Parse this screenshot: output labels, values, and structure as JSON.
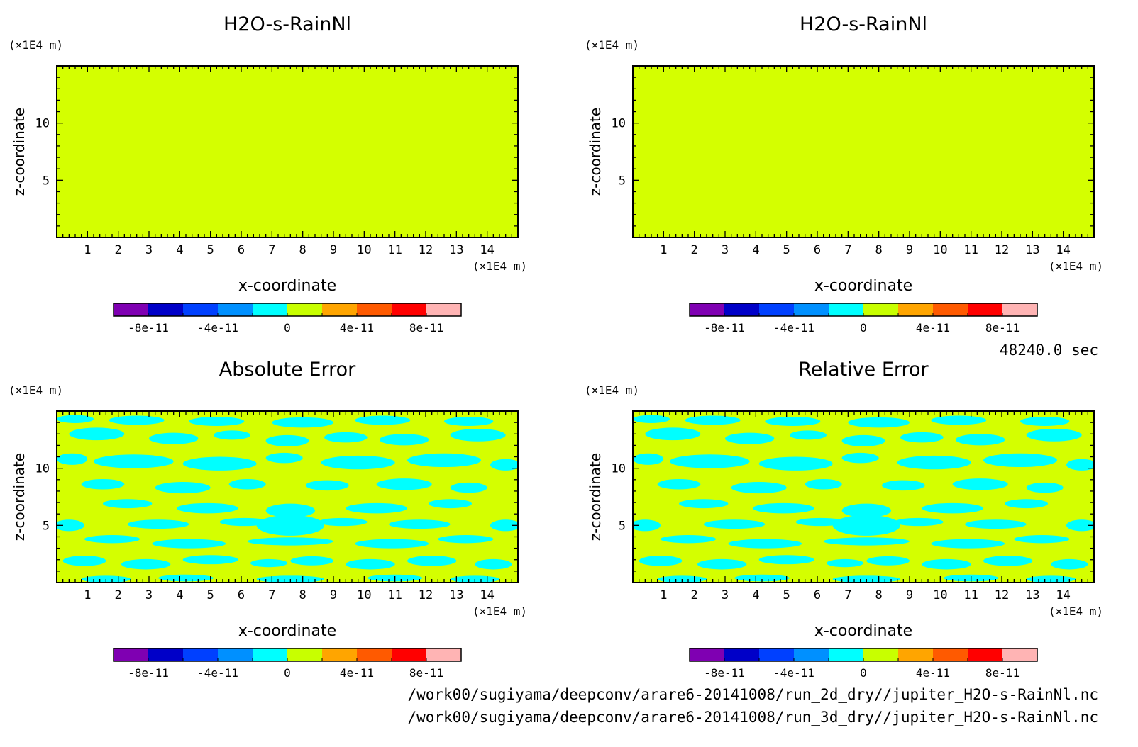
{
  "time_label": "48240.0 sec",
  "files": [
    "/work00/sugiyama/deepconv/arare6-20141008/run_2d_dry//jupiter_H2O-s-RainNl.nc",
    "/work00/sugiyama/deepconv/arare6-20141008/run_3d_dry//jupiter_H2O-s-RainNl.nc"
  ],
  "colors": {
    "background": "#ffffff",
    "field_fill": "#d4ff00",
    "error_patch": "#00ffff",
    "colorbar": [
      "#7f00b2",
      "#0000c8",
      "#0040ff",
      "#0090ff",
      "#00ffff",
      "#c8ff00",
      "#ffa500",
      "#ff5a00",
      "#ff0000",
      "#ffb4b4"
    ]
  },
  "colorbar_ticks": [
    "-8e-11",
    "-4e-11",
    "0",
    "4e-11",
    "8e-11"
  ],
  "chart_data": [
    {
      "type": "heatmap",
      "panel": "top-left",
      "title": "H2O-s-RainNl",
      "xlabel": "x-coordinate",
      "ylabel": "z-coordinate",
      "x_unit": "(×1E4 m)",
      "y_unit": "(×1E4 m)",
      "xlim": [
        0,
        15
      ],
      "ylim": [
        0,
        15
      ],
      "x_ticks": [
        "1",
        "2",
        "3",
        "4",
        "5",
        "6",
        "7",
        "8",
        "9",
        "10",
        "11",
        "12",
        "13",
        "14"
      ],
      "y_ticks": [
        "5",
        "10"
      ],
      "field": "uniform",
      "value": 0
    },
    {
      "type": "heatmap",
      "panel": "top-right",
      "title": "H2O-s-RainNl",
      "xlabel": "x-coordinate",
      "ylabel": "z-coordinate",
      "x_unit": "(×1E4 m)",
      "y_unit": "(×1E4 m)",
      "xlim": [
        0,
        15
      ],
      "ylim": [
        0,
        15
      ],
      "x_ticks": [
        "1",
        "2",
        "3",
        "4",
        "5",
        "6",
        "7",
        "8",
        "9",
        "10",
        "11",
        "12",
        "13",
        "14"
      ],
      "y_ticks": [
        "5",
        "10"
      ],
      "field": "uniform",
      "value": 0
    },
    {
      "type": "heatmap",
      "panel": "bottom-left",
      "title": "Absolute Error",
      "xlabel": "x-coordinate",
      "ylabel": "z-coordinate",
      "x_unit": "(×1E4 m)",
      "y_unit": "(×1E4 m)",
      "xlim": [
        0,
        15
      ],
      "ylim": [
        0,
        15
      ],
      "x_ticks": [
        "1",
        "2",
        "3",
        "4",
        "5",
        "6",
        "7",
        "8",
        "9",
        "10",
        "11",
        "12",
        "13",
        "14"
      ],
      "y_ticks": [
        "5",
        "10"
      ],
      "field": "mixed",
      "blobs": [
        [
          0.6,
          14.3,
          0.6,
          0.35
        ],
        [
          2.6,
          14.2,
          0.9,
          0.4
        ],
        [
          5.2,
          14.1,
          0.9,
          0.4
        ],
        [
          8.0,
          14.0,
          1.0,
          0.45
        ],
        [
          10.6,
          14.2,
          0.9,
          0.4
        ],
        [
          13.4,
          14.1,
          0.8,
          0.4
        ],
        [
          1.3,
          13.0,
          0.9,
          0.55
        ],
        [
          3.8,
          12.6,
          0.8,
          0.5
        ],
        [
          5.7,
          12.9,
          0.6,
          0.4
        ],
        [
          7.5,
          12.4,
          0.7,
          0.5
        ],
        [
          9.4,
          12.7,
          0.7,
          0.45
        ],
        [
          11.3,
          12.5,
          0.8,
          0.5
        ],
        [
          13.7,
          12.9,
          0.9,
          0.55
        ],
        [
          0.5,
          10.8,
          0.5,
          0.5
        ],
        [
          2.5,
          10.6,
          1.3,
          0.6
        ],
        [
          5.3,
          10.4,
          1.2,
          0.6
        ],
        [
          7.4,
          10.9,
          0.6,
          0.45
        ],
        [
          9.8,
          10.5,
          1.2,
          0.6
        ],
        [
          12.6,
          10.7,
          1.2,
          0.6
        ],
        [
          14.6,
          10.3,
          0.5,
          0.5
        ],
        [
          1.5,
          8.6,
          0.7,
          0.45
        ],
        [
          4.1,
          8.3,
          0.9,
          0.5
        ],
        [
          6.2,
          8.6,
          0.6,
          0.45
        ],
        [
          8.8,
          8.5,
          0.7,
          0.45
        ],
        [
          11.3,
          8.6,
          0.9,
          0.5
        ],
        [
          13.4,
          8.3,
          0.6,
          0.45
        ],
        [
          2.3,
          6.9,
          0.8,
          0.4
        ],
        [
          4.9,
          6.5,
          1.0,
          0.45
        ],
        [
          7.6,
          6.3,
          0.8,
          0.6
        ],
        [
          10.4,
          6.5,
          1.0,
          0.45
        ],
        [
          12.8,
          6.9,
          0.7,
          0.4
        ],
        [
          0.4,
          5.0,
          0.5,
          0.5
        ],
        [
          3.3,
          5.1,
          1.0,
          0.4
        ],
        [
          6.1,
          5.3,
          0.8,
          0.35
        ],
        [
          7.6,
          5.0,
          1.1,
          0.9
        ],
        [
          9.3,
          5.3,
          0.8,
          0.35
        ],
        [
          11.8,
          5.1,
          1.0,
          0.4
        ],
        [
          14.6,
          5.0,
          0.5,
          0.5
        ],
        [
          1.8,
          3.8,
          0.9,
          0.35
        ],
        [
          4.3,
          3.4,
          1.2,
          0.4
        ],
        [
          7.6,
          3.6,
          1.4,
          0.35
        ],
        [
          10.9,
          3.4,
          1.2,
          0.4
        ],
        [
          13.3,
          3.8,
          0.9,
          0.35
        ],
        [
          0.9,
          1.9,
          0.7,
          0.45
        ],
        [
          2.9,
          1.6,
          0.8,
          0.45
        ],
        [
          5.0,
          2.0,
          0.9,
          0.4
        ],
        [
          6.9,
          1.7,
          0.6,
          0.35
        ],
        [
          8.3,
          1.9,
          0.7,
          0.4
        ],
        [
          10.2,
          1.6,
          0.8,
          0.45
        ],
        [
          12.2,
          1.9,
          0.8,
          0.45
        ],
        [
          14.2,
          1.6,
          0.6,
          0.45
        ],
        [
          1.6,
          0.3,
          0.8,
          0.3
        ],
        [
          4.2,
          0.4,
          0.9,
          0.3
        ],
        [
          7.6,
          0.3,
          1.1,
          0.3
        ],
        [
          11.0,
          0.4,
          0.9,
          0.3
        ],
        [
          13.6,
          0.3,
          0.8,
          0.3
        ]
      ]
    },
    {
      "type": "heatmap",
      "panel": "bottom-right",
      "title": "Relative Error",
      "xlabel": "x-coordinate",
      "ylabel": "z-coordinate",
      "x_unit": "(×1E4 m)",
      "y_unit": "(×1E4 m)",
      "xlim": [
        0,
        15
      ],
      "ylim": [
        0,
        15
      ],
      "x_ticks": [
        "1",
        "2",
        "3",
        "4",
        "5",
        "6",
        "7",
        "8",
        "9",
        "10",
        "11",
        "12",
        "13",
        "14"
      ],
      "y_ticks": [
        "5",
        "10"
      ],
      "field": "mixed",
      "blobs": [
        [
          0.6,
          14.3,
          0.6,
          0.35
        ],
        [
          2.6,
          14.2,
          0.9,
          0.4
        ],
        [
          5.2,
          14.1,
          0.9,
          0.4
        ],
        [
          8.0,
          14.0,
          1.0,
          0.45
        ],
        [
          10.6,
          14.2,
          0.9,
          0.4
        ],
        [
          13.4,
          14.1,
          0.8,
          0.4
        ],
        [
          1.3,
          13.0,
          0.9,
          0.55
        ],
        [
          3.8,
          12.6,
          0.8,
          0.5
        ],
        [
          5.7,
          12.9,
          0.6,
          0.4
        ],
        [
          7.5,
          12.4,
          0.7,
          0.5
        ],
        [
          9.4,
          12.7,
          0.7,
          0.45
        ],
        [
          11.3,
          12.5,
          0.8,
          0.5
        ],
        [
          13.7,
          12.9,
          0.9,
          0.55
        ],
        [
          0.5,
          10.8,
          0.5,
          0.5
        ],
        [
          2.5,
          10.6,
          1.3,
          0.6
        ],
        [
          5.3,
          10.4,
          1.2,
          0.6
        ],
        [
          7.4,
          10.9,
          0.6,
          0.45
        ],
        [
          9.8,
          10.5,
          1.2,
          0.6
        ],
        [
          12.6,
          10.7,
          1.2,
          0.6
        ],
        [
          14.6,
          10.3,
          0.5,
          0.5
        ],
        [
          1.5,
          8.6,
          0.7,
          0.45
        ],
        [
          4.1,
          8.3,
          0.9,
          0.5
        ],
        [
          6.2,
          8.6,
          0.6,
          0.45
        ],
        [
          8.8,
          8.5,
          0.7,
          0.45
        ],
        [
          11.3,
          8.6,
          0.9,
          0.5
        ],
        [
          13.4,
          8.3,
          0.6,
          0.45
        ],
        [
          2.3,
          6.9,
          0.8,
          0.4
        ],
        [
          4.9,
          6.5,
          1.0,
          0.45
        ],
        [
          7.6,
          6.3,
          0.8,
          0.6
        ],
        [
          10.4,
          6.5,
          1.0,
          0.45
        ],
        [
          12.8,
          6.9,
          0.7,
          0.4
        ],
        [
          0.4,
          5.0,
          0.5,
          0.5
        ],
        [
          3.3,
          5.1,
          1.0,
          0.4
        ],
        [
          6.1,
          5.3,
          0.8,
          0.35
        ],
        [
          7.6,
          5.0,
          1.1,
          0.9
        ],
        [
          9.3,
          5.3,
          0.8,
          0.35
        ],
        [
          11.8,
          5.1,
          1.0,
          0.4
        ],
        [
          14.6,
          5.0,
          0.5,
          0.5
        ],
        [
          1.8,
          3.8,
          0.9,
          0.35
        ],
        [
          4.3,
          3.4,
          1.2,
          0.4
        ],
        [
          7.6,
          3.6,
          1.4,
          0.35
        ],
        [
          10.9,
          3.4,
          1.2,
          0.4
        ],
        [
          13.3,
          3.8,
          0.9,
          0.35
        ],
        [
          0.9,
          1.9,
          0.7,
          0.45
        ],
        [
          2.9,
          1.6,
          0.8,
          0.45
        ],
        [
          5.0,
          2.0,
          0.9,
          0.4
        ],
        [
          6.9,
          1.7,
          0.6,
          0.35
        ],
        [
          8.3,
          1.9,
          0.7,
          0.4
        ],
        [
          10.2,
          1.6,
          0.8,
          0.45
        ],
        [
          12.2,
          1.9,
          0.8,
          0.45
        ],
        [
          14.2,
          1.6,
          0.6,
          0.45
        ],
        [
          1.6,
          0.3,
          0.8,
          0.3
        ],
        [
          4.2,
          0.4,
          0.9,
          0.3
        ],
        [
          7.6,
          0.3,
          1.1,
          0.3
        ],
        [
          11.0,
          0.4,
          0.9,
          0.3
        ],
        [
          13.6,
          0.3,
          0.8,
          0.3
        ]
      ]
    }
  ]
}
